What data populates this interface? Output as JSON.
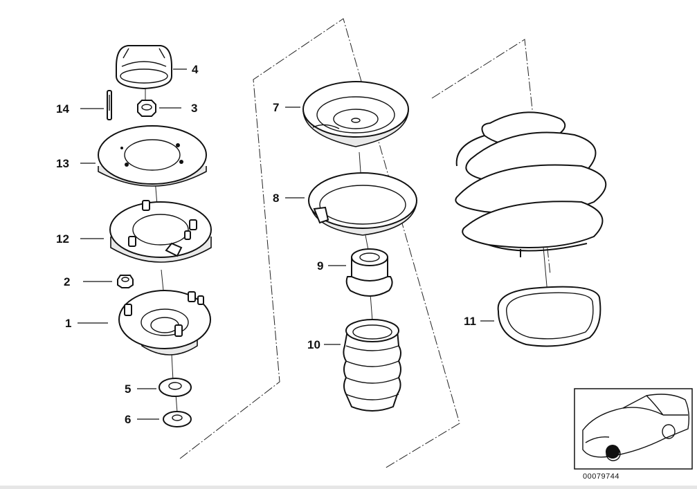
{
  "parts": [
    {
      "id": "part-4",
      "label": "4"
    },
    {
      "id": "part-3",
      "label": "3"
    },
    {
      "id": "part-14",
      "label": "14"
    },
    {
      "id": "part-13",
      "label": "13"
    },
    {
      "id": "part-12",
      "label": "12"
    },
    {
      "id": "part-2",
      "label": "2"
    },
    {
      "id": "part-1",
      "label": "1"
    },
    {
      "id": "part-5",
      "label": "5"
    },
    {
      "id": "part-6",
      "label": "6"
    },
    {
      "id": "part-7",
      "label": "7"
    },
    {
      "id": "part-8",
      "label": "8"
    },
    {
      "id": "part-9",
      "label": "9"
    },
    {
      "id": "part-10",
      "label": "10"
    },
    {
      "id": "part-11",
      "label": "11"
    }
  ],
  "catalog_number": "00079744",
  "colors": {
    "line": "#111111",
    "background": "#ffffff"
  },
  "inset": {
    "icon": "car-locator-icon"
  }
}
